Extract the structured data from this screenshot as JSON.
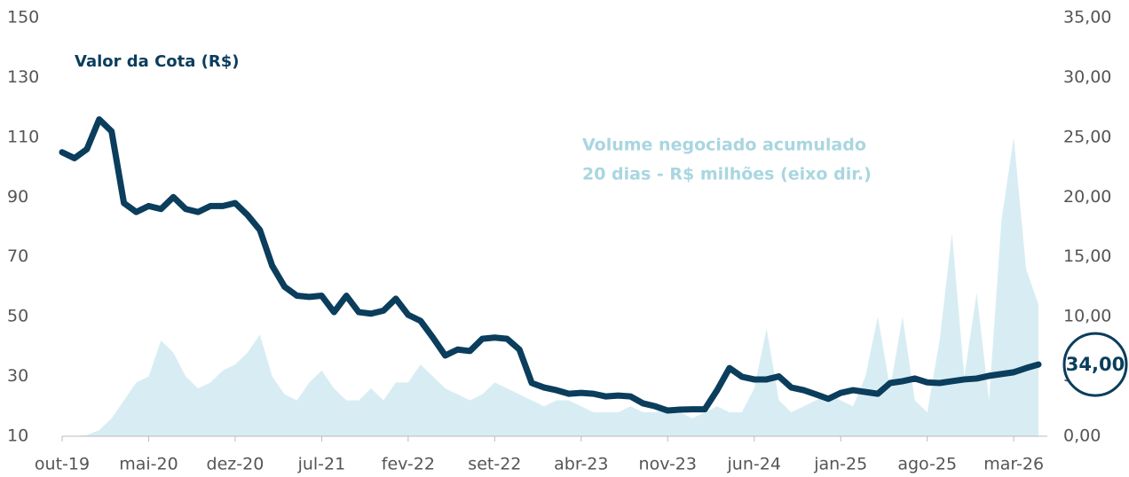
{
  "chart_data": {
    "type": "line",
    "x": [
      "2019-10",
      "2019-11",
      "2019-12",
      "2020-01",
      "2020-02",
      "2020-03",
      "2020-04",
      "2020-05",
      "2020-06",
      "2020-07",
      "2020-08",
      "2020-09",
      "2020-10",
      "2020-11",
      "2020-12",
      "2021-01",
      "2021-02",
      "2021-03",
      "2021-04",
      "2021-05",
      "2021-06",
      "2021-07",
      "2021-08",
      "2021-09",
      "2021-10",
      "2021-11",
      "2021-12",
      "2022-01",
      "2022-02",
      "2022-03",
      "2022-04",
      "2022-05",
      "2022-06",
      "2022-07",
      "2022-08",
      "2022-09",
      "2022-10",
      "2022-11",
      "2022-12",
      "2023-01",
      "2023-02",
      "2023-03",
      "2023-04",
      "2023-05",
      "2023-06",
      "2023-07",
      "2023-08",
      "2023-09",
      "2023-10",
      "2023-11",
      "2023-12",
      "2024-01",
      "2024-02",
      "2024-03",
      "2024-04",
      "2024-05",
      "2024-06",
      "2024-07",
      "2024-08",
      "2024-09",
      "2024-10",
      "2024-11",
      "2024-12",
      "2025-01",
      "2025-02",
      "2025-03",
      "2025-04",
      "2025-05",
      "2025-06",
      "2025-07",
      "2025-08",
      "2025-09",
      "2025-10",
      "2025-11",
      "2025-12",
      "2026-01",
      "2026-02",
      "2026-03",
      "2026-04",
      "2026-05"
    ],
    "xlim": [
      "2019-10",
      "2026-05"
    ],
    "xticks": [
      {
        "value": "2019-10",
        "label": "out-19"
      },
      {
        "value": "2020-05",
        "label": "mai-20"
      },
      {
        "value": "2020-12",
        "label": "dez-20"
      },
      {
        "value": "2021-07",
        "label": "jul-21"
      },
      {
        "value": "2022-02",
        "label": "fev-22"
      },
      {
        "value": "2022-09",
        "label": "set-22"
      },
      {
        "value": "2023-04",
        "label": "abr-23"
      },
      {
        "value": "2023-11",
        "label": "nov-23"
      },
      {
        "value": "2024-06",
        "label": "jun-24"
      },
      {
        "value": "2025-01",
        "label": "jan-25"
      },
      {
        "value": "2025-08",
        "label": "ago-25"
      },
      {
        "value": "2026-03",
        "label": "mar-26"
      }
    ],
    "ylim": [
      10,
      150
    ],
    "yticks": [
      10,
      30,
      50,
      70,
      90,
      110,
      130,
      150
    ],
    "y2lim": [
      0,
      35
    ],
    "y2ticks": [
      {
        "value": 0,
        "label": "0,00"
      },
      {
        "value": 5,
        "label": "5,00"
      },
      {
        "value": 10,
        "label": "10,00"
      },
      {
        "value": 15,
        "label": "15,00"
      },
      {
        "value": 20,
        "label": "20,00"
      },
      {
        "value": 25,
        "label": "25,00"
      },
      {
        "value": 30,
        "label": "30,00"
      },
      {
        "value": 35,
        "label": "35,00"
      }
    ],
    "series": [
      {
        "name": [
          "Valor da Cota (R$)"
        ],
        "type": "line",
        "color": "#0b3d5c",
        "values": [
          105,
          103,
          106,
          116,
          112,
          88,
          85,
          87,
          86,
          90,
          86,
          85,
          87,
          87,
          88,
          84,
          79,
          67,
          60,
          57,
          56.6,
          57,
          51.5,
          57,
          51.5,
          51,
          52,
          56,
          50.6,
          48.6,
          43,
          37,
          39,
          38.5,
          42.6,
          43,
          42.6,
          39,
          27.8,
          26.3,
          25.4,
          24.2,
          24.5,
          24.2,
          23.3,
          23.6,
          23.3,
          21,
          20,
          18.6,
          18.9,
          19,
          19,
          25.4,
          32.8,
          29.9,
          29,
          29,
          30,
          26.3,
          25.4,
          24,
          22.5,
          24.5,
          25.4,
          24.8,
          24.2,
          27.8,
          28.4,
          29.3,
          28,
          27.8,
          28.4,
          29,
          29.3,
          30.2,
          30.8,
          31.4,
          32.8,
          34
        ],
        "value_labels": [
          null,
          null,
          null,
          null,
          null,
          null,
          null,
          null,
          null,
          null,
          null,
          null,
          null,
          null,
          null,
          null,
          null,
          null,
          null,
          null,
          null,
          null,
          null,
          null,
          null,
          null,
          null,
          null,
          null,
          null,
          null,
          null,
          null,
          null,
          null,
          null,
          null,
          null,
          null,
          null,
          null,
          null,
          null,
          null,
          null,
          null,
          null,
          null,
          null,
          null,
          null,
          null,
          null,
          null,
          null,
          null,
          null,
          null,
          null,
          null,
          null,
          null,
          null,
          null,
          null,
          null,
          null,
          null,
          null,
          null,
          null,
          null,
          null,
          null,
          null,
          null,
          null,
          null,
          null,
          "34,00"
        ]
      },
      {
        "name": [
          "Volume negociado acumulado",
          "20 dias - R$ milhões (eixo dir.)"
        ],
        "type": "area",
        "axis": "y2",
        "color": "#d8edf3",
        "values": [
          0,
          0,
          0.1,
          0.5,
          1.5,
          3,
          4.5,
          5,
          8,
          7,
          5,
          4,
          4.5,
          5.5,
          6,
          7,
          8.5,
          5,
          3.5,
          3,
          4.5,
          5.5,
          4,
          3,
          3,
          4,
          3,
          4.5,
          4.5,
          6,
          5,
          4,
          3.5,
          3,
          3.5,
          4.5,
          4,
          3.5,
          3,
          2.5,
          3,
          3,
          2.5,
          2,
          2,
          2,
          2.5,
          2,
          2,
          2.5,
          2,
          1.5,
          2,
          2.5,
          2,
          2,
          4,
          9,
          3,
          2,
          2.5,
          3,
          3.5,
          3,
          2.5,
          5,
          10,
          4,
          10,
          3,
          2,
          8,
          17,
          5,
          12,
          3,
          18,
          25,
          14,
          11
        ]
      }
    ]
  }
}
